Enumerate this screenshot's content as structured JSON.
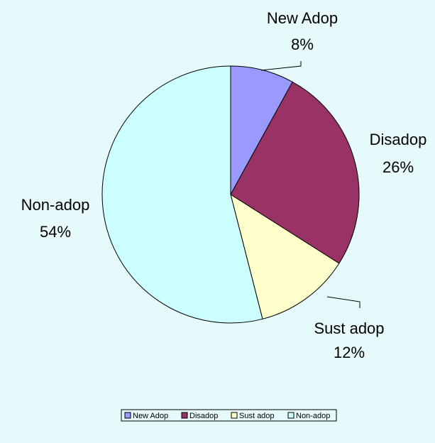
{
  "chart_data": {
    "type": "pie",
    "title": "",
    "categories": [
      "New Adop",
      "Disadop",
      "Sust adop",
      "Non-adop"
    ],
    "values": [
      8,
      26,
      12,
      54
    ],
    "value_labels": [
      "8%",
      "26%",
      "12%",
      "54%"
    ],
    "colors": [
      "#9999ff",
      "#993366",
      "#ffffcc",
      "#ccffff"
    ],
    "legend_placement": "bottom",
    "start": "12 o'clock",
    "direction": "clockwise"
  }
}
